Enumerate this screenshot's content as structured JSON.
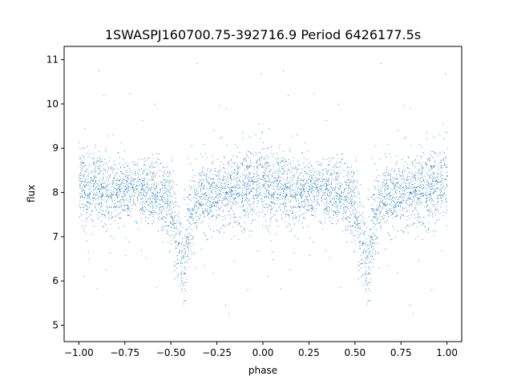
{
  "chart_data": {
    "type": "scatter",
    "title": "1SWASPJ160700.75-392716.9 Period 6426177.5s",
    "xlabel": "phase",
    "ylabel": "flux",
    "xlim": [
      -1.08,
      1.08
    ],
    "ylim": [
      4.63,
      11.3
    ],
    "xticks": [
      -1.0,
      -0.75,
      -0.5,
      -0.25,
      0.0,
      0.25,
      0.5,
      0.75,
      1.0
    ],
    "xtick_labels": [
      "−1.00",
      "−0.75",
      "−0.50",
      "−0.25",
      "0.00",
      "0.25",
      "0.50",
      "0.75",
      "1.00"
    ],
    "yticks": [
      5,
      6,
      7,
      8,
      9,
      10,
      11
    ],
    "ytick_labels": [
      "5",
      "6",
      "7",
      "8",
      "9",
      "10",
      "11"
    ],
    "grid": false,
    "marker_color": "#1f77b4",
    "profile": {
      "phase": [
        0.0,
        0.05,
        0.1,
        0.15,
        0.2,
        0.25,
        0.3,
        0.35,
        0.4,
        0.45,
        0.5,
        0.52,
        0.54,
        0.56,
        0.58,
        0.6,
        0.65,
        0.7,
        0.75,
        0.8,
        0.85,
        0.9,
        0.95,
        1.0
      ],
      "flux_median": [
        8.3,
        8.05,
        8.1,
        8.0,
        8.0,
        8.0,
        8.05,
        8.0,
        8.0,
        7.9,
        7.75,
        7.3,
        6.8,
        6.3,
        6.6,
        7.4,
        7.9,
        8.0,
        8.0,
        8.05,
        8.0,
        8.1,
        8.2,
        8.3
      ],
      "flux_scatter": [
        0.5,
        0.4,
        0.4,
        0.4,
        0.35,
        0.35,
        0.35,
        0.35,
        0.35,
        0.4,
        0.45,
        0.5,
        0.55,
        0.5,
        0.5,
        0.45,
        0.4,
        0.4,
        0.35,
        0.4,
        0.4,
        0.45,
        0.45,
        0.5
      ]
    },
    "points_per_cycle": 2600,
    "point_groups": [
      {
        "phase_range": [
          0.0,
          0.05
        ],
        "approx_count": 190
      },
      {
        "phase_range": [
          0.45,
          0.6
        ],
        "approx_count": 260
      },
      {
        "phase_range": [
          0.6,
          1.0
        ],
        "approx_count": 1050
      }
    ]
  }
}
